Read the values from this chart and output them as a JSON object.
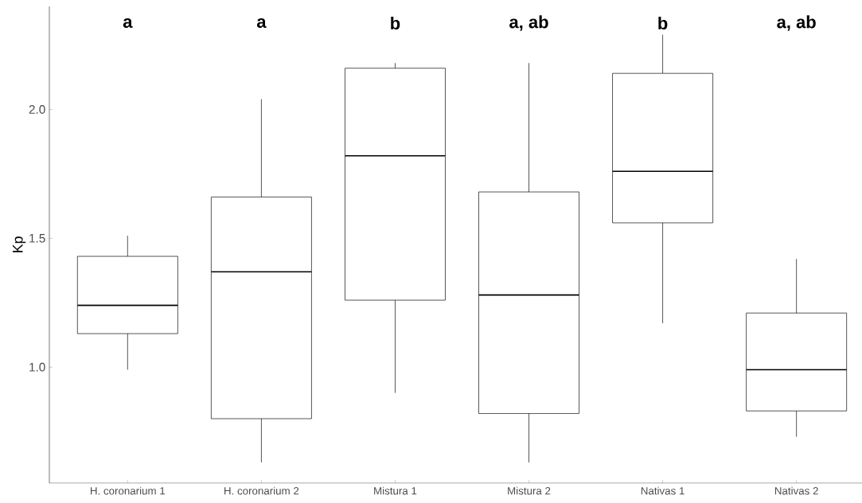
{
  "chart_data": {
    "type": "box",
    "ylabel": "Kp",
    "categories": [
      "H. coronarium 1",
      "H. coronarium 2",
      "Mistura 1",
      "Mistura 2",
      "Nativas 1",
      "Nativas 2"
    ],
    "boxes": [
      {
        "low": 0.99,
        "q1": 1.13,
        "median": 1.24,
        "q3": 1.43,
        "high": 1.51
      },
      {
        "low": 0.63,
        "q1": 0.8,
        "median": 1.37,
        "q3": 1.66,
        "high": 2.04
      },
      {
        "low": 0.9,
        "q1": 1.26,
        "median": 1.82,
        "q3": 2.16,
        "high": 2.18
      },
      {
        "low": 0.63,
        "q1": 0.82,
        "median": 1.28,
        "q3": 1.68,
        "high": 2.18
      },
      {
        "low": 1.17,
        "q1": 1.56,
        "median": 1.76,
        "q3": 2.14,
        "high": 2.29
      },
      {
        "low": 0.73,
        "q1": 0.83,
        "median": 0.99,
        "q3": 1.21,
        "high": 1.42
      }
    ],
    "ylim": [
      0.55,
      2.4
    ],
    "yticks": [
      {
        "value": 1.0,
        "label": "1.0"
      },
      {
        "value": 1.5,
        "label": "1.5"
      },
      {
        "value": 2.0,
        "label": "2.0"
      }
    ],
    "annotations": [
      "a",
      "a",
      "b",
      "a, ab",
      "b",
      "a, ab"
    ]
  }
}
